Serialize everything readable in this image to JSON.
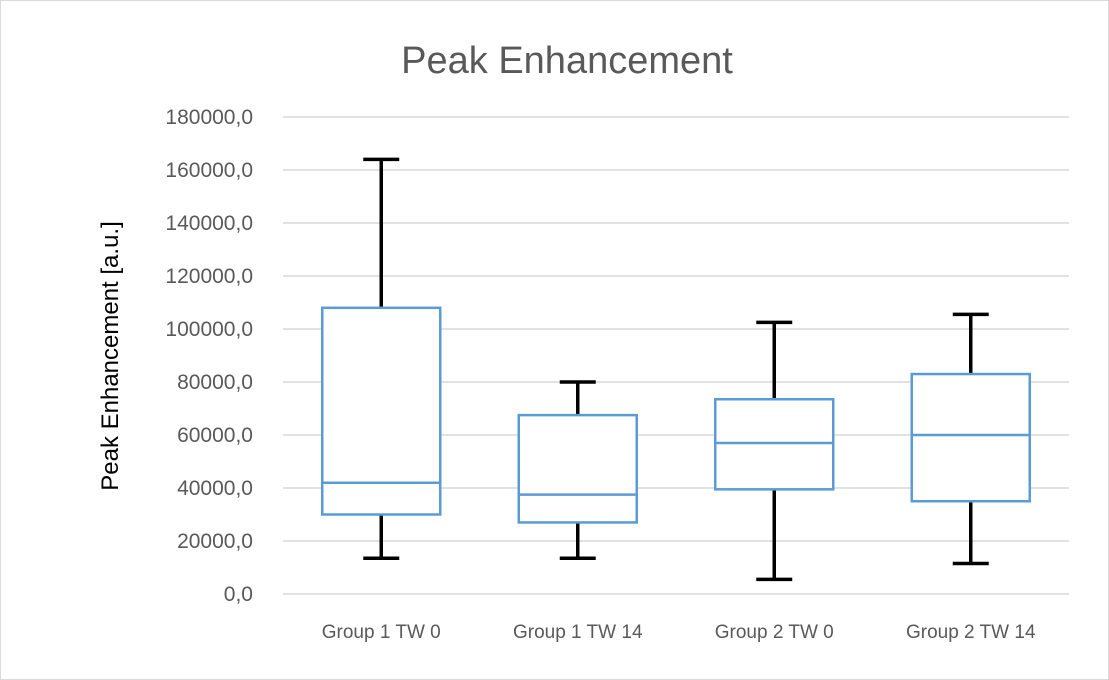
{
  "chart_data": {
    "type": "box",
    "title": "Peak Enhancement",
    "xlabel": "",
    "ylabel": "Peak Enhancement  [a.u.]",
    "ylim": [
      0,
      180000
    ],
    "ytick_values": [
      0,
      20000,
      40000,
      60000,
      80000,
      100000,
      120000,
      140000,
      160000,
      180000
    ],
    "ytick_labels": [
      "0,0",
      "20000,0",
      "40000,0",
      "60000,0",
      "80000,0",
      "100000,0",
      "120000,0",
      "140000,0",
      "160000,0",
      "180000,0"
    ],
    "grid": true,
    "legend": "none",
    "categories": [
      "Group 1 TW 0",
      "Group 1 TW 14",
      "Group 2 TW 0",
      "Group 2 TW 14"
    ],
    "boxes": [
      {
        "min": 13500,
        "q1": 30000,
        "median": 42000,
        "q3": 108000,
        "max": 164000
      },
      {
        "min": 13500,
        "q1": 27000,
        "median": 37500,
        "q3": 67500,
        "max": 80000
      },
      {
        "min": 5500,
        "q1": 39500,
        "median": 57000,
        "q3": 73500,
        "max": 102500
      },
      {
        "min": 11500,
        "q1": 35000,
        "median": 60000,
        "q3": 83000,
        "max": 105500
      }
    ],
    "colors": {
      "box": "#5b9bd5",
      "whisker": "#000000",
      "grid": "#d9d9d9",
      "text": "#595959"
    }
  }
}
